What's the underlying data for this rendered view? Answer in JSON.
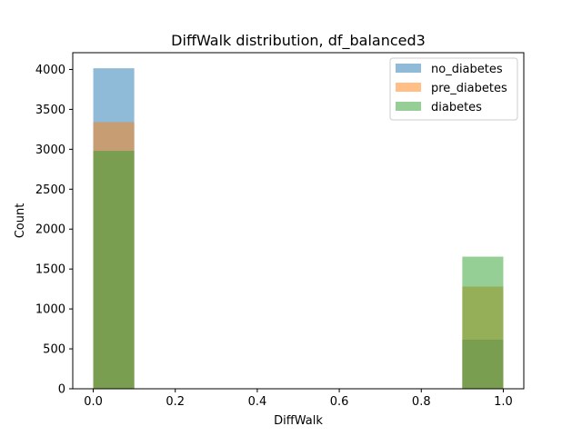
{
  "chart_data": {
    "type": "bar",
    "title": "DiffWalk distribution, df_balanced3",
    "xlabel": "DiffWalk",
    "ylabel": "Count",
    "xlim": [
      -0.05,
      1.05
    ],
    "ylim": [
      0,
      4210
    ],
    "xticks": [
      0.0,
      0.2,
      0.4,
      0.6,
      0.8,
      1.0
    ],
    "xtick_labels": [
      "0.0",
      "0.2",
      "0.4",
      "0.6",
      "0.8",
      "1.0"
    ],
    "yticks": [
      0,
      500,
      1000,
      1500,
      2000,
      2500,
      3000,
      3500,
      4000
    ],
    "ytick_labels": [
      "0",
      "500",
      "1000",
      "1500",
      "2000",
      "2500",
      "3000",
      "3500",
      "4000"
    ],
    "bin_edges": [
      [
        0.0,
        0.1
      ],
      [
        0.9,
        1.0
      ]
    ],
    "series": [
      {
        "name": "no_diabetes",
        "color": "#1f77b4",
        "values": [
          4015,
          615
        ]
      },
      {
        "name": "pre_diabetes",
        "color": "#ff7f0e",
        "values": [
          3340,
          1280
        ]
      },
      {
        "name": "diabetes",
        "color": "#2ca02c",
        "values": [
          2980,
          1655
        ]
      }
    ],
    "bar_alpha": 0.5,
    "grid": false,
    "legend_position": "top-right"
  }
}
